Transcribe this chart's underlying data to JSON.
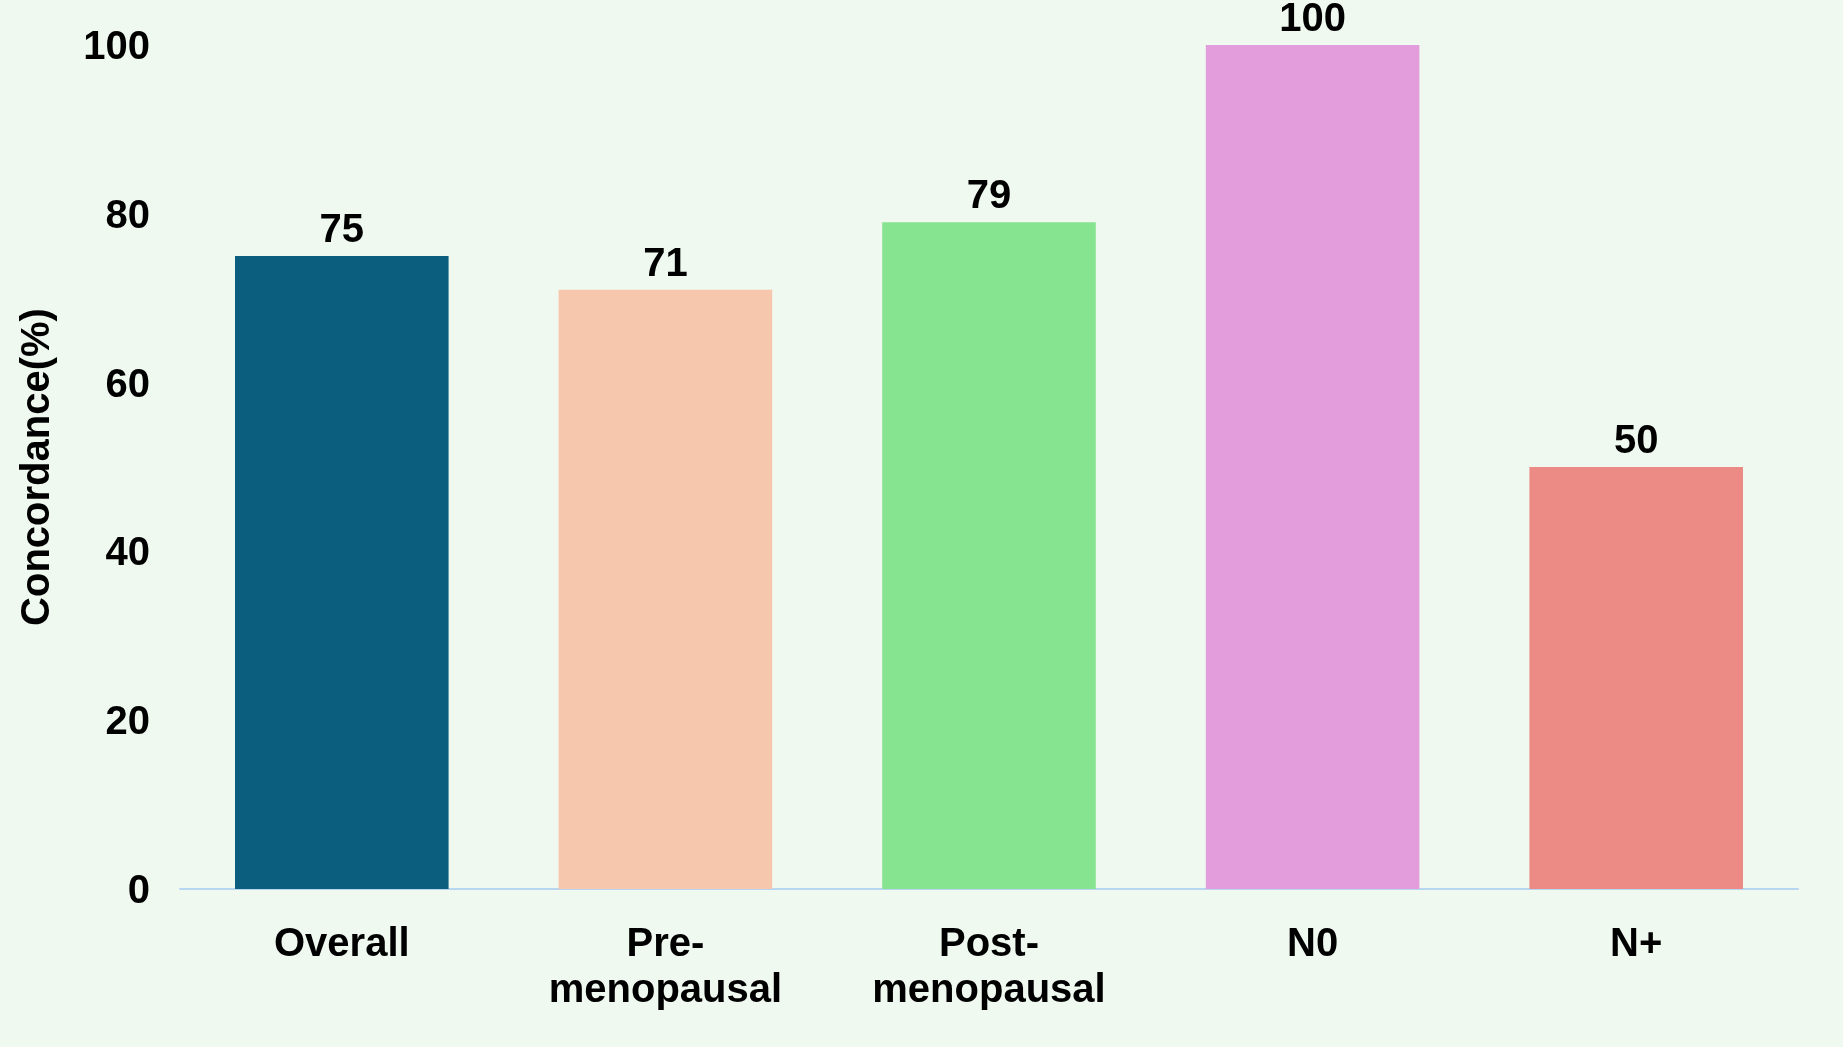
{
  "chart_data": {
    "type": "bar",
    "ylabel": "Concordance(%)",
    "categories": [
      "Overall",
      "Pre-menopausal",
      "Post-menopausal",
      "N0",
      "N+"
    ],
    "values": [
      75,
      71,
      79,
      100,
      50
    ],
    "colors": [
      "#0b5e7e",
      "#f7c7ad",
      "#86e38f",
      "#e39ddd",
      "#ec8a85"
    ],
    "ylim": [
      0,
      100
    ],
    "yticks": [
      0,
      20,
      40,
      60,
      80,
      100
    ],
    "grid": false,
    "data_labels": true
  }
}
